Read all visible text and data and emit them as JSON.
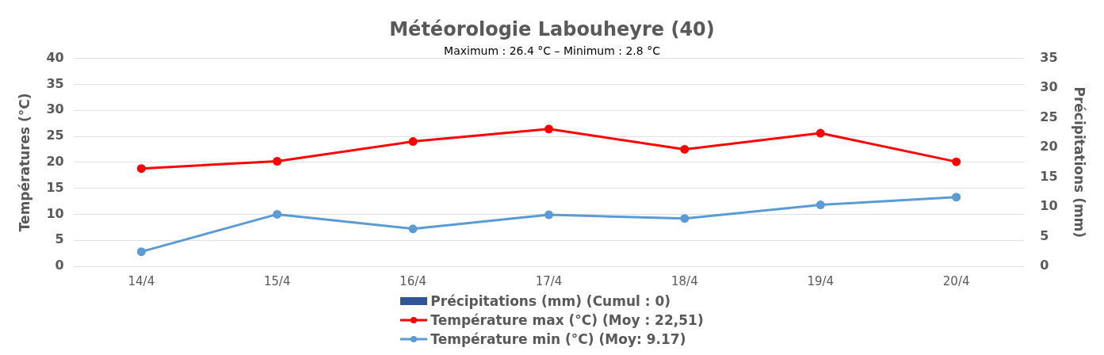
{
  "chart_data": {
    "type": "line",
    "title": "Météorologie Labouheyre (40)",
    "subtitle": "Maximum : 26.4 °C – Minimum : 2.8 °C",
    "ylabel": "Températures (°C)",
    "y2label": "Précipitations (mm)",
    "categories": [
      "14/4",
      "15/4",
      "16/4",
      "17/4",
      "18/4",
      "19/4",
      "20/4"
    ],
    "series": [
      {
        "name": "Précipitations (mm) (Cumul : 0)",
        "type": "bar",
        "color": "#2f5597",
        "values": [
          0,
          0,
          0,
          0,
          0,
          0,
          0
        ]
      },
      {
        "name": "Température max (°C) (Moy : 22,51)",
        "color": "#ff0000",
        "values": [
          18.8,
          20.2,
          24,
          26.4,
          22.5,
          25.6,
          20.1
        ]
      },
      {
        "name": "Température min (°C) (Moy: 9.17)",
        "color": "#5b9bd5",
        "values": [
          2.8,
          10,
          7.2,
          9.9,
          9.2,
          11.8,
          13.3
        ]
      }
    ],
    "ylim": [
      0,
      40
    ],
    "yticks": [
      0,
      5,
      10,
      15,
      20,
      25,
      30,
      35,
      40
    ],
    "y2lim": [
      0,
      35
    ],
    "y2ticks": [
      0,
      5,
      10,
      15,
      20,
      25,
      30,
      35
    ],
    "grid": "y",
    "legend": "bottom",
    "marker": "circle",
    "line_style": "solid"
  }
}
